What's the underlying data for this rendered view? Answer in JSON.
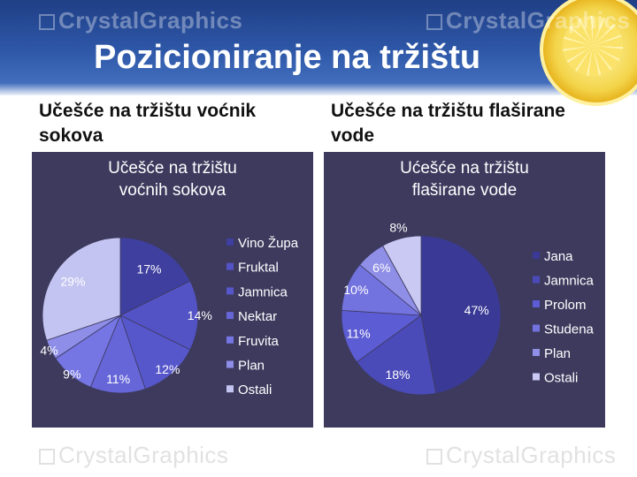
{
  "header": {
    "title": "Pozicioniranje na tržištu",
    "watermark_text": "CrystalGraphics"
  },
  "left": {
    "heading": "Učešće na tržištu voćnik sokova"
  },
  "right": {
    "heading_line1": "Učešće na tržištu flaširane",
    "heading_line2": "vode"
  },
  "colors": {
    "header": "#2f58a9",
    "panel": "#3d3a5e",
    "text": "#ffffff"
  },
  "chart_data": [
    {
      "type": "pie",
      "title": "Učešće na tržištu voćnih sokova",
      "title_lines": [
        "Učešće na tržištu",
        "voćnih sokova"
      ],
      "labels": [
        "Vino Župa",
        "Fruktal",
        "Jamnica",
        "Nektar",
        "Fruvita",
        "Plan",
        "Ostali"
      ],
      "values": [
        17,
        14,
        12,
        11,
        9,
        4,
        29
      ],
      "value_labels": [
        "17%",
        "14%",
        "12%",
        "11%",
        "9%",
        "4%",
        "29%"
      ],
      "colors": [
        "#3f3fa0",
        "#5353c6",
        "#5757cc",
        "#6666d9",
        "#7575e3",
        "#8e8ee9",
        "#c4c4f2"
      ],
      "legend_position": "right"
    },
    {
      "type": "pie",
      "title": "Ućešće na tržištu flaširane vode",
      "title_lines": [
        "Ućešće na tržištu",
        "flaširane vode"
      ],
      "labels": [
        "Jana",
        "Jamnica",
        "Prolom",
        "Studena",
        "Plan",
        "Ostali"
      ],
      "values": [
        47,
        18,
        11,
        10,
        6,
        8
      ],
      "value_labels": [
        "47%",
        "18%",
        "11%",
        "10%",
        "6%",
        "8%"
      ],
      "colors": [
        "#3a3a96",
        "#4a4ab8",
        "#5c5cd4",
        "#7373e0",
        "#8f8fe8",
        "#c9c9f3"
      ],
      "legend_position": "right"
    }
  ]
}
